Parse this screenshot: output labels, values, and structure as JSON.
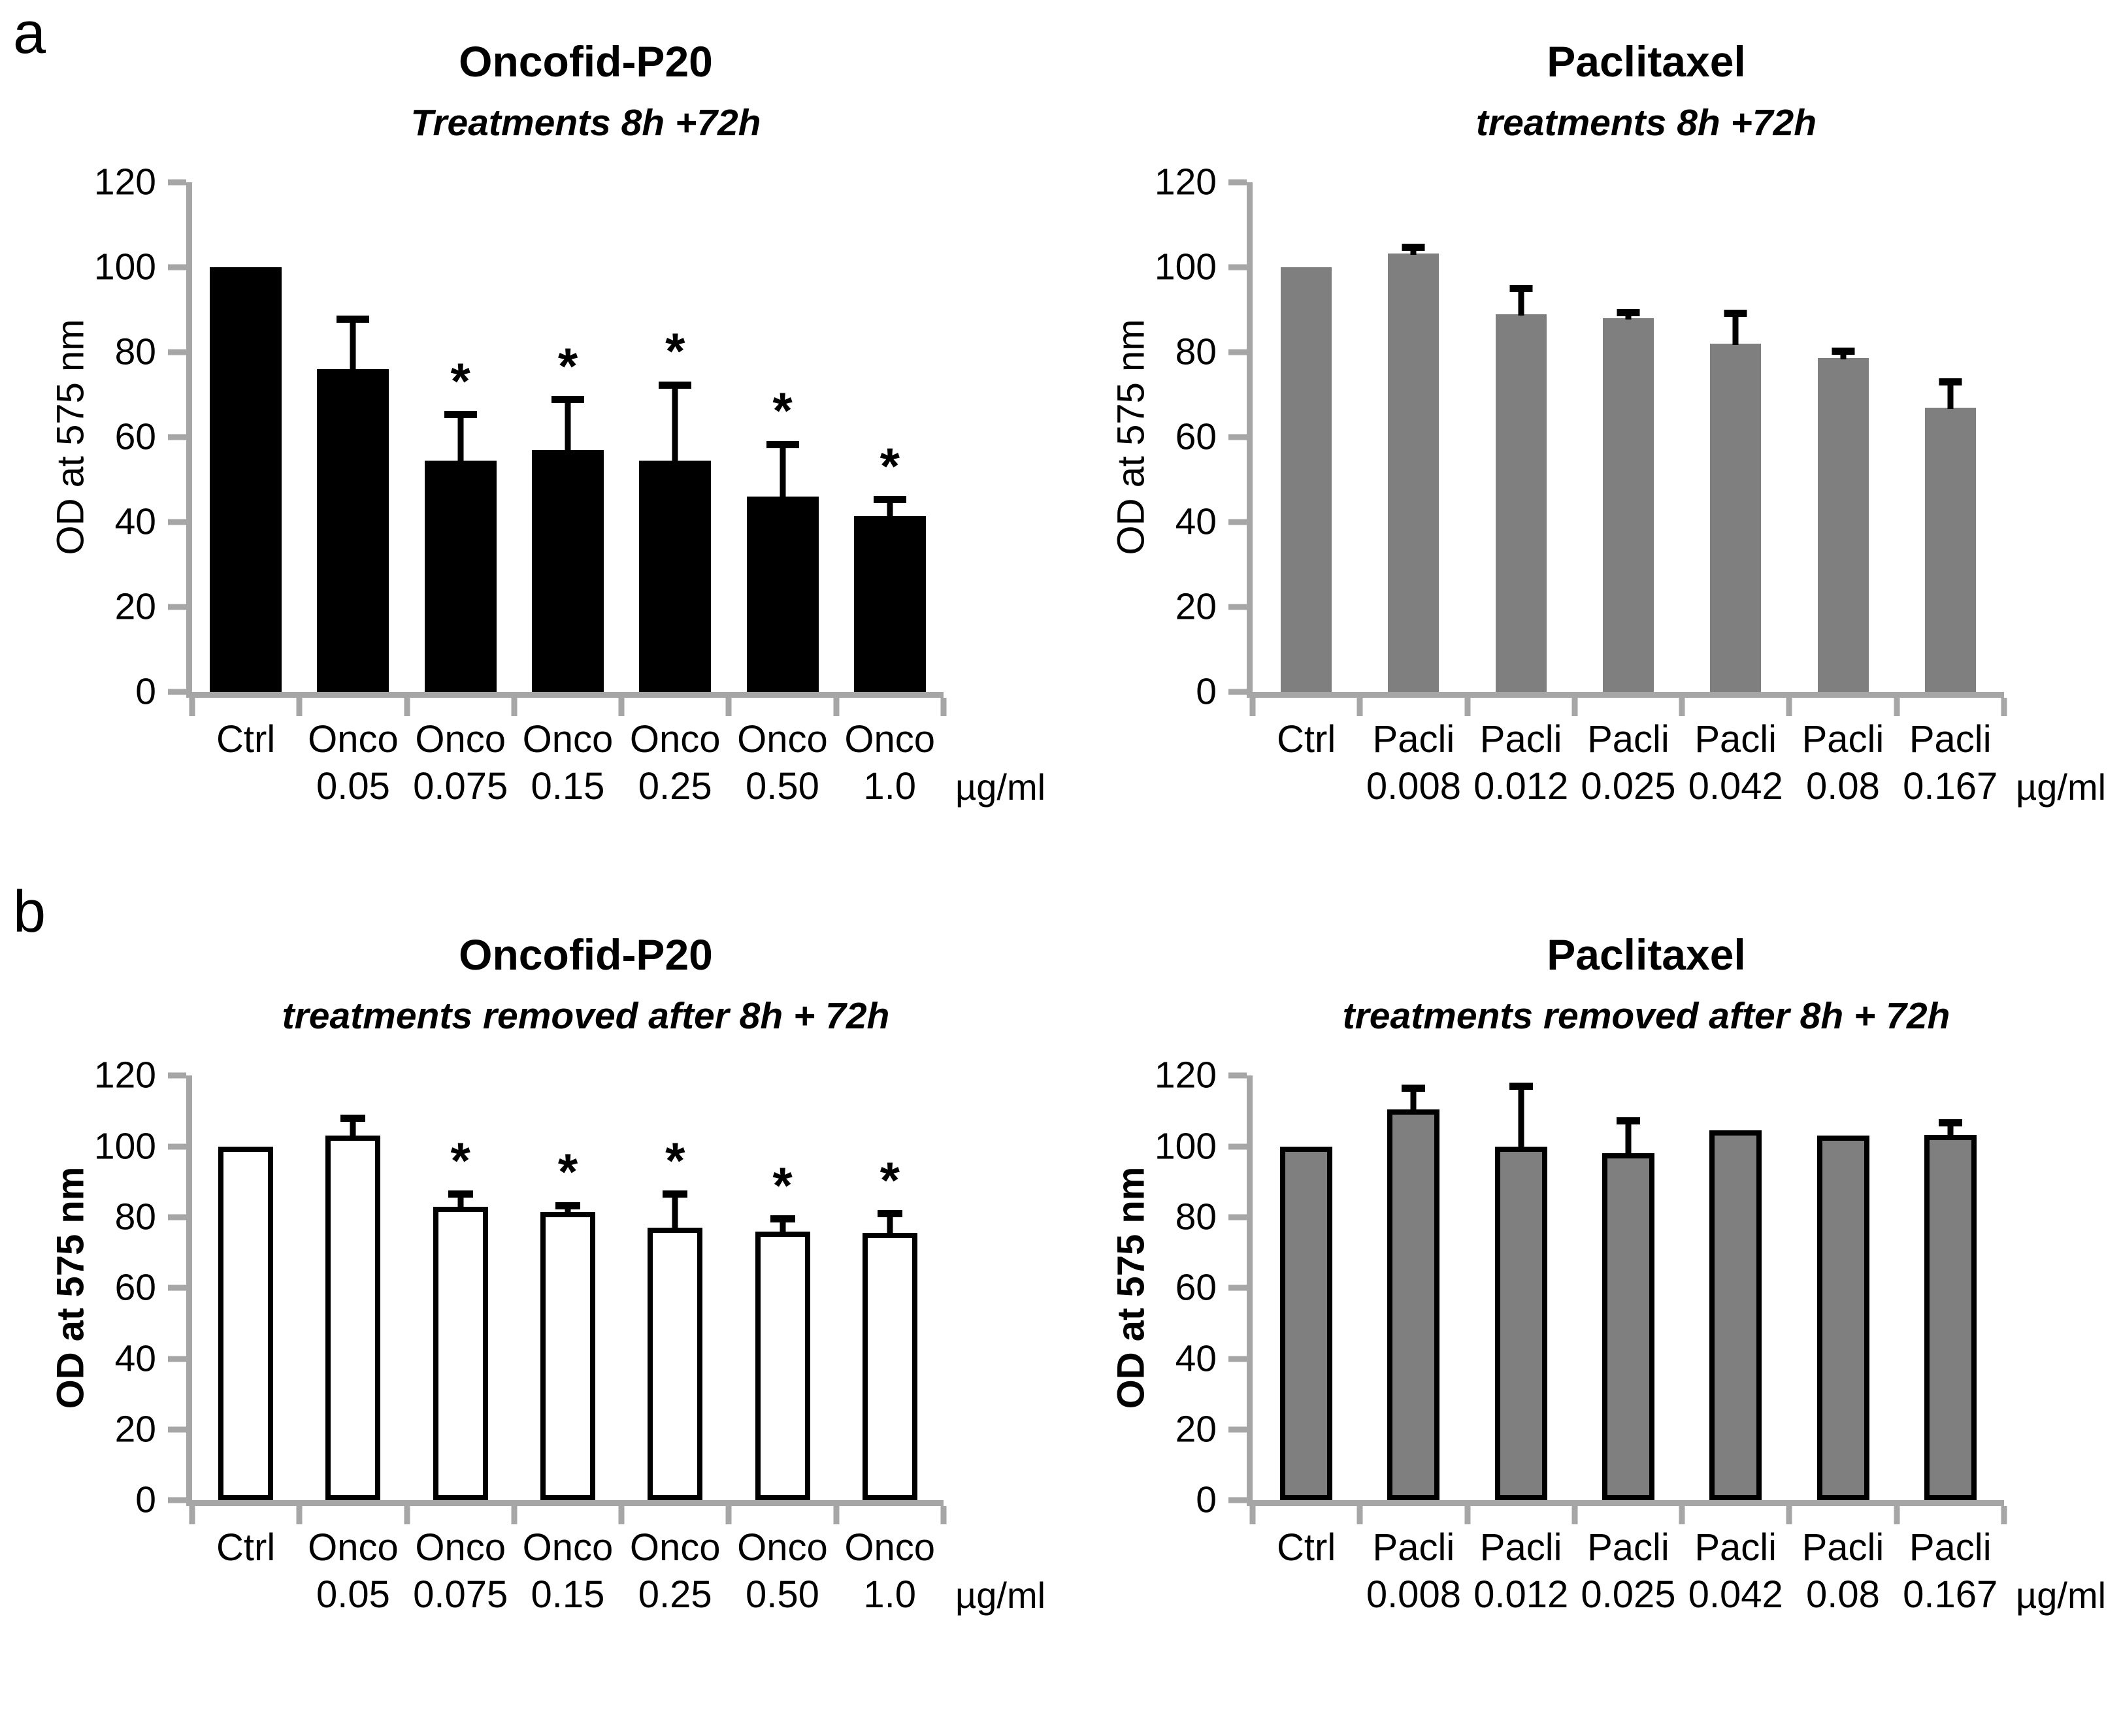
{
  "panel_letters": [
    "a",
    "b"
  ],
  "chart_data": [
    {
      "panel": "a",
      "position": "left",
      "type": "bar",
      "title": "Oncofid-P20",
      "subtitle": "Treatments 8h +72h",
      "ylabel": "OD at 575 nm",
      "unit_label": "µg/ml",
      "ylim": [
        0,
        120
      ],
      "ytick_step": 20,
      "grid": false,
      "legend": "none",
      "sig_marker": "*",
      "categories": [
        "Ctrl",
        "Onco 0.05",
        "Onco 0.075",
        "Onco 0.15",
        "Onco 0.25",
        "Onco 0.50",
        "Onco 1.0"
      ],
      "bar_names": [
        "Ctrl",
        "Onco",
        "Onco",
        "Onco",
        "Onco",
        "Onco",
        "Onco"
      ],
      "bar_concs": [
        "",
        "0.05",
        "0.075",
        "0.15",
        "0.25",
        "0.50",
        "1.0"
      ],
      "values": [
        100,
        76,
        54.5,
        57,
        54.5,
        46,
        41.5
      ],
      "errors": [
        0,
        11,
        10,
        11,
        17,
        11.5,
        3
      ],
      "significant": [
        false,
        false,
        true,
        true,
        true,
        true,
        true
      ],
      "bar_fill": "#000000",
      "bar_border": "none",
      "axis_color": "#a6a6a6",
      "error_color": "#000000"
    },
    {
      "panel": "a",
      "position": "right",
      "type": "bar",
      "title": "Paclitaxel",
      "subtitle": "treatments 8h +72h",
      "ylabel": "OD at 575 nm",
      "unit_label": "µg/ml",
      "ylim": [
        0,
        120
      ],
      "ytick_step": 20,
      "grid": false,
      "legend": "none",
      "sig_marker": "*",
      "categories": [
        "Ctrl",
        "Pacli 0.008",
        "Pacli 0.012",
        "Pacli 0.025",
        "Pacli 0.042",
        "Pacli 0.08",
        "Pacli 0.167"
      ],
      "bar_names": [
        "Ctrl",
        "Pacli",
        "Pacli",
        "Pacli",
        "Pacli",
        "Pacli",
        "Pacli"
      ],
      "bar_concs": [
        "",
        "0.008",
        "0.012",
        "0.025",
        "0.042",
        "0.08",
        "0.167"
      ],
      "values": [
        100,
        103.3,
        89,
        88,
        82,
        78.7,
        67
      ],
      "errors": [
        0,
        0.6,
        5.2,
        0.5,
        6.4,
        0.7,
        5.2
      ],
      "significant": [
        false,
        false,
        false,
        false,
        false,
        false,
        false
      ],
      "bar_fill": "#7f7f7f",
      "bar_border": "none",
      "axis_color": "#a6a6a6",
      "error_color": "#000000"
    },
    {
      "panel": "b",
      "position": "left",
      "type": "bar",
      "title": "Oncofid-P20",
      "subtitle": "treatments removed after 8h + 72h",
      "ylabel": "OD at 575 nm",
      "unit_label": "µg/ml",
      "ylim": [
        0,
        120
      ],
      "ytick_step": 20,
      "grid": false,
      "legend": "none",
      "sig_marker": "*",
      "categories": [
        "Ctrl",
        "Onco 0.05",
        "Onco 0.075",
        "Onco 0.15",
        "Onco 0.25",
        "Onco 0.50",
        "Onco 1.0"
      ],
      "bar_names": [
        "Ctrl",
        "Onco",
        "Onco",
        "Onco",
        "Onco",
        "Onco",
        "Onco"
      ],
      "bar_concs": [
        "",
        "0.05",
        "0.075",
        "0.15",
        "0.25",
        "0.50",
        "1.0"
      ],
      "values": [
        100,
        103,
        83,
        81.5,
        77,
        76,
        75.5
      ],
      "errors": [
        0,
        4,
        2.5,
        0.8,
        8.5,
        2.5,
        4.5
      ],
      "significant": [
        false,
        false,
        true,
        true,
        true,
        true,
        true
      ],
      "bar_fill": "#ffffff",
      "bar_border": "#000000",
      "axis_color": "#a6a6a6",
      "error_color": "#000000"
    },
    {
      "panel": "b",
      "position": "right",
      "type": "bar",
      "title": "Paclitaxel",
      "subtitle": "treatments removed after 8h + 72h",
      "ylabel": "OD at 575 nm",
      "unit_label": "µg/ml",
      "ylim": [
        0,
        120
      ],
      "ytick_step": 20,
      "grid": false,
      "legend": "none",
      "sig_marker": "*",
      "categories": [
        "Ctrl",
        "Pacli 0.008",
        "Pacli 0.012",
        "Pacli 0.025",
        "Pacli 0.042",
        "Pacli 0.08",
        "Pacli 0.167"
      ],
      "bar_names": [
        "Ctrl",
        "Pacli",
        "Pacli",
        "Pacli",
        "Pacli",
        "Pacli",
        "Pacli"
      ],
      "bar_concs": [
        "",
        "0.008",
        "0.012",
        "0.025",
        "0.042",
        "0.08",
        "0.167"
      ],
      "values": [
        100,
        110.5,
        100,
        98,
        104.5,
        103,
        103.3
      ],
      "errors": [
        0,
        5,
        16,
        8.3,
        0,
        0,
        2.3
      ],
      "significant": [
        false,
        false,
        false,
        false,
        false,
        false,
        false
      ],
      "bar_fill": "#7f7f7f",
      "bar_border": "#000000",
      "axis_color": "#a6a6a6",
      "error_color": "#000000"
    }
  ]
}
